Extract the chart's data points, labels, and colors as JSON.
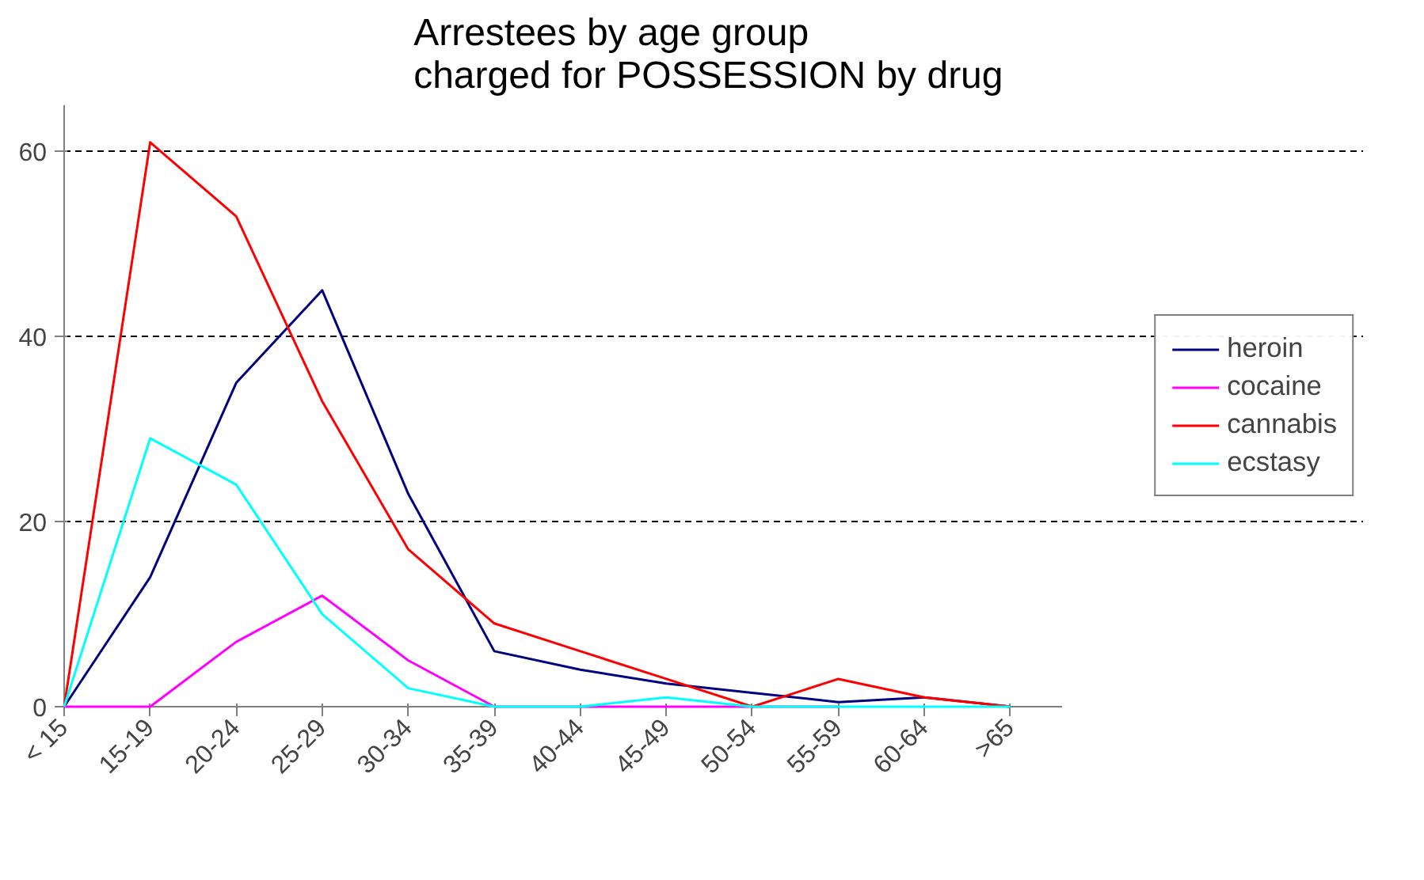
{
  "chart_data": {
    "type": "line",
    "title": "Arrestees by age group\ncharged for POSSESSION  by drug",
    "categories": [
      "< 15",
      "15-19",
      "20-24",
      "25-29",
      "30-34",
      "35-39",
      "40-44",
      "45-49",
      "50-54",
      "55-59",
      "60-64",
      ">65"
    ],
    "series": [
      {
        "name": "heroin",
        "color": "#000080",
        "values": [
          0,
          14,
          35,
          45,
          23,
          6,
          4,
          2.5,
          1.5,
          0.5,
          1,
          0
        ]
      },
      {
        "name": "cocaine",
        "color": "#ff00ff",
        "values": [
          0,
          0,
          7,
          12,
          5,
          0,
          0,
          0,
          0,
          0,
          null,
          null
        ]
      },
      {
        "name": "cannabis",
        "color": "#ff0000",
        "values": [
          0,
          61,
          53,
          33,
          17,
          9,
          6,
          3,
          0,
          3,
          1,
          0
        ]
      },
      {
        "name": "ecstasy",
        "color": "#00ffff",
        "values": [
          0,
          29,
          24,
          10,
          2,
          0,
          0,
          1,
          0,
          0,
          0,
          0
        ]
      }
    ],
    "ylim": [
      0,
      65
    ],
    "yticks": [
      0,
      20,
      40,
      60
    ],
    "grid": "y",
    "legend": "right",
    "marker": "none",
    "line_style": "solid"
  }
}
